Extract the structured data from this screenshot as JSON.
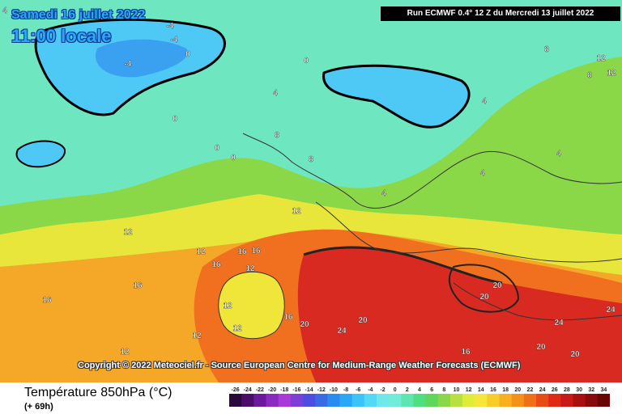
{
  "header": {
    "date": "Samedi 16 juillet 2022",
    "time": "11:00 locale",
    "run": "Run ECMWF 0.4° 12 Z du Mercredi 13 juillet 2022"
  },
  "copyright": "Copyright © 2022 Meteociel.fr - Source European Centre for Medium-Range Weather Forecasts (ECMWF)",
  "footer": {
    "variable": "Température 850hPa (°C)",
    "lead_time": "(+ 69h)"
  },
  "legend": {
    "ticks": [
      "-26",
      "-24",
      "-22",
      "-20",
      "-18",
      "-16",
      "-14",
      "-12",
      "-10",
      "-8",
      "-6",
      "-4",
      "-2",
      "0",
      "2",
      "4",
      "6",
      "8",
      "10",
      "12",
      "14",
      "16",
      "18",
      "20",
      "22",
      "24",
      "26",
      "28",
      "30",
      "32",
      "34"
    ],
    "colors": [
      "#2a0a3a",
      "#4a0e6a",
      "#6a1a9a",
      "#8a2abf",
      "#a83ad8",
      "#7d3fd8",
      "#4f4ce0",
      "#3a6ae6",
      "#2a8cf0",
      "#2aa8f5",
      "#3ac4f8",
      "#55d8f5",
      "#6ee8e8",
      "#70ecd8",
      "#5ee6b0",
      "#4fde80",
      "#5ed85a",
      "#8ad848",
      "#b8e040",
      "#e0ec3a",
      "#f5e63a",
      "#f8cc2a",
      "#f8b020",
      "#f59018",
      "#f07018",
      "#e84a18",
      "#e02a18",
      "#c81818",
      "#a81010",
      "#880a0a",
      "#680606"
    ]
  },
  "map_colors": {
    "cold": "#4ec8f5",
    "cool": "#6ee6c0",
    "mild": "#8ae05a",
    "warm": "#ece63a",
    "hot": "#f5a020",
    "veryhot": "#e84a20",
    "extreme": "#d82020"
  },
  "contour_labels": [
    {
      "text": "4"
    },
    {
      "text": "-4"
    },
    {
      "text": "-4"
    },
    {
      "text": "-4"
    },
    {
      "text": "0"
    },
    {
      "text": "0"
    },
    {
      "text": "0"
    },
    {
      "text": "0"
    },
    {
      "text": "0"
    },
    {
      "text": "4"
    },
    {
      "text": "8"
    },
    {
      "text": "8"
    },
    {
      "text": "12"
    },
    {
      "text": "12"
    },
    {
      "text": "12"
    },
    {
      "text": "16"
    },
    {
      "text": "16"
    },
    {
      "text": "16"
    },
    {
      "text": "16"
    },
    {
      "text": "12"
    },
    {
      "text": "12"
    },
    {
      "text": "12"
    },
    {
      "text": "20"
    },
    {
      "text": "24"
    },
    {
      "text": "20"
    },
    {
      "text": "20"
    },
    {
      "text": "20"
    },
    {
      "text": "24"
    },
    {
      "text": "24"
    },
    {
      "text": "20"
    },
    {
      "text": "20"
    },
    {
      "text": "16"
    },
    {
      "text": "4"
    },
    {
      "text": "4"
    },
    {
      "text": "4"
    },
    {
      "text": "8"
    },
    {
      "text": "12"
    },
    {
      "text": "12"
    },
    {
      "text": "8"
    },
    {
      "text": "4"
    },
    {
      "text": "12"
    },
    {
      "text": "16"
    },
    {
      "text": "12"
    },
    {
      "text": "16"
    }
  ]
}
